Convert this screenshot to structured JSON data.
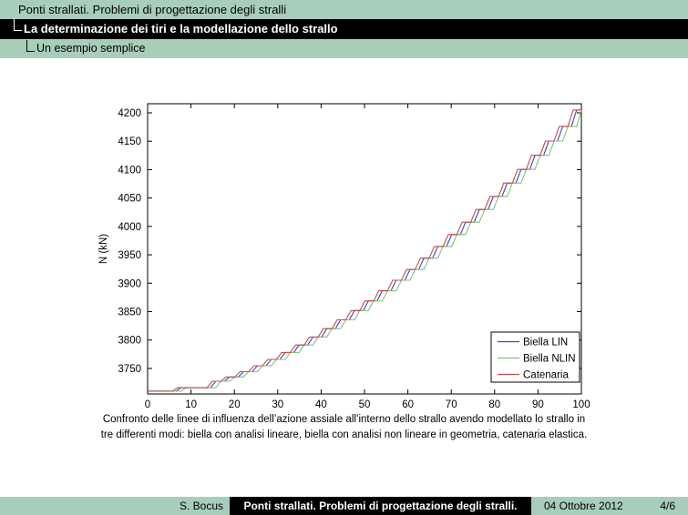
{
  "header": {
    "line1": "Ponti strallati. Problemi di progettazione degli stralli",
    "line2": "La determinazione dei tiri e la modellazione dello strallo",
    "line3": "Un esempio semplice"
  },
  "caption": {
    "line1": "Confronto delle linee di influenza dell’azione assiale all’interno dello strallo avendo modellato lo strallo in",
    "line2": "tre differenti modi: biella con analisi lineare, biella con analisi non lineare in geometria, catenaria elastica."
  },
  "footer": {
    "author": "S. Bocus",
    "title": "Ponti strallati. Problemi di progettazione degli stralli.",
    "date": "04 Ottobre 2012",
    "page": "4/6"
  },
  "colors": {
    "band_green": "#a8cebb",
    "band_black": "#000000",
    "axis": "#000000",
    "plot_background": "#ffffff"
  },
  "chart_data": {
    "type": "line",
    "title": "",
    "xlabel": "",
    "ylabel": "N (kN)",
    "xlim": [
      0,
      100
    ],
    "ylim": [
      3705,
      4216
    ],
    "xticks": [
      0,
      10,
      20,
      30,
      40,
      50,
      60,
      70,
      80,
      90,
      100
    ],
    "yticks": [
      3750,
      3800,
      3850,
      3900,
      3950,
      4000,
      4050,
      4100,
      4150,
      4200
    ],
    "grid": false,
    "legend_position": "lower right",
    "description": "Staircase influence lines: flat start then risers at step_x climbing to step_values; three nearly coincident series shifted by x_offset",
    "start_value": 3710,
    "riser_width": 1.2,
    "step_x": [
      6.5,
      14.5,
      17.7,
      20.9,
      24.1,
      27.3,
      30.5,
      33.7,
      36.9,
      40.1,
      43.3,
      46.5,
      49.7,
      52.9,
      56.1,
      59.3,
      62.5,
      65.7,
      68.9,
      72.1,
      75.3,
      78.5,
      81.7,
      84.9,
      88.1,
      91.3,
      94.5,
      97.7
    ],
    "step_values": [
      3716.0,
      3727.4,
      3734.9,
      3744.2,
      3754.6,
      3765.9,
      3778.1,
      3791.2,
      3805.2,
      3820.0,
      3835.5,
      3851.9,
      3868.9,
      3886.7,
      3905.2,
      3924.3,
      3944.1,
      3964.6,
      3985.7,
      4007.4,
      4029.8,
      4052.7,
      4076.3,
      4100.4,
      4125.1,
      4150.4,
      4176.1,
      4205.0
    ],
    "series": [
      {
        "name": "Biella LIN",
        "color": "#4242b8",
        "x_offset": 0.0
      },
      {
        "name": "Biella NLIN",
        "color": "#85c27c",
        "x_offset": 1.2
      },
      {
        "name": "Catenaria",
        "color": "#c14f4a",
        "x_offset": -0.8
      }
    ]
  }
}
